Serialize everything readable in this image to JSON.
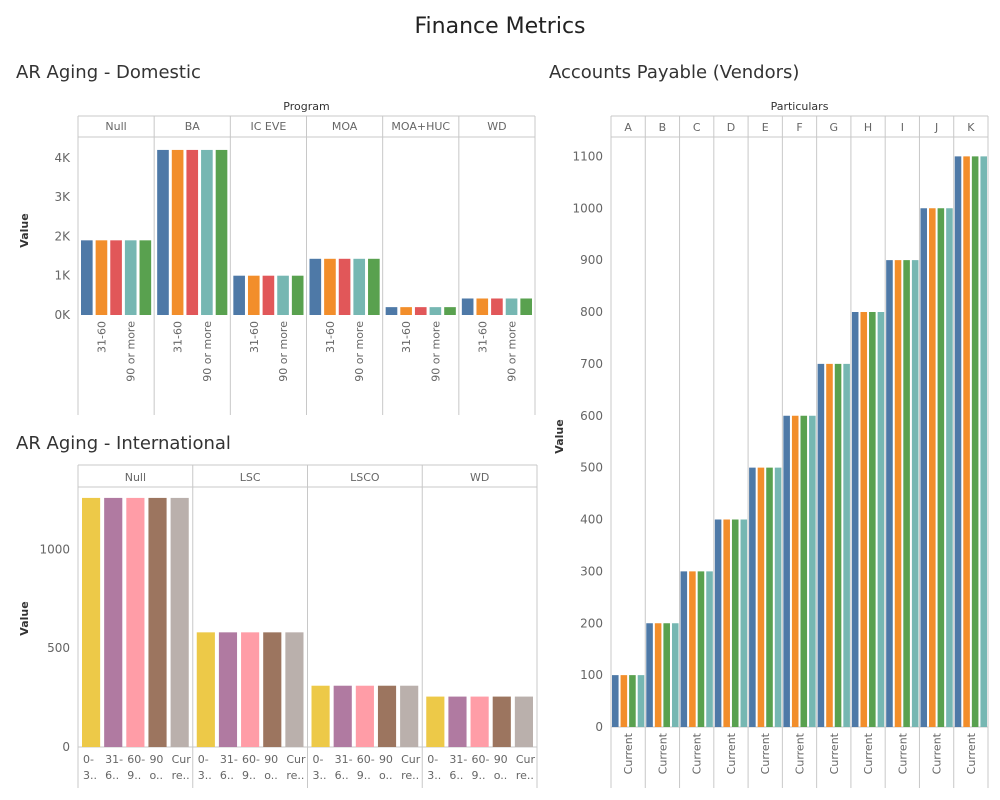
{
  "dashboard": {
    "title": "Finance Metrics"
  },
  "chart_data": [
    {
      "id": "domestic",
      "type": "bar",
      "title": "AR Aging - Domestic",
      "group_header": "Program",
      "ylabel": "Value",
      "ylim": [
        0,
        4300
      ],
      "yticks": [
        {
          "v": 0,
          "label": "0K"
        },
        {
          "v": 1000,
          "label": "1K"
        },
        {
          "v": 2000,
          "label": "2K"
        },
        {
          "v": 3000,
          "label": "3K"
        },
        {
          "v": 4000,
          "label": "4K"
        }
      ],
      "series_colors": [
        "#4e79a7",
        "#f28e2b",
        "#e15759",
        "#76b7b2",
        "#59a14f"
      ],
      "groups": [
        {
          "name": "Null",
          "values": [
            1900,
            1900,
            1900,
            1900,
            1900
          ]
        },
        {
          "name": "BA",
          "values": [
            4200,
            4200,
            4200,
            4200,
            4200
          ]
        },
        {
          "name": "IC EVE",
          "values": [
            1000,
            1000,
            1000,
            1000,
            1000
          ]
        },
        {
          "name": "MOA",
          "values": [
            1430,
            1430,
            1430,
            1430,
            1430
          ]
        },
        {
          "name": "MOA+HUC",
          "values": [
            200,
            200,
            200,
            200,
            200
          ]
        },
        {
          "name": "WD",
          "values": [
            420,
            420,
            420,
            420,
            420
          ]
        }
      ],
      "x_labels": [
        "",
        "31-60",
        "",
        "90 or more",
        ""
      ]
    },
    {
      "id": "international",
      "type": "bar",
      "title": "AR Aging - International",
      "ylabel": "Value",
      "ylim": [
        0,
        1300
      ],
      "yticks": [
        {
          "v": 0,
          "label": "0"
        },
        {
          "v": 500,
          "label": "500"
        },
        {
          "v": 1000,
          "label": "1000"
        }
      ],
      "series_colors": [
        "#edc948",
        "#b07aa1",
        "#ff9da7",
        "#9c755f",
        "#bab0ac"
      ],
      "groups": [
        {
          "name": "Null",
          "values": [
            1260,
            1260,
            1260,
            1260,
            1260
          ]
        },
        {
          "name": "LSC",
          "values": [
            580,
            580,
            580,
            580,
            580
          ]
        },
        {
          "name": "LSCO",
          "values": [
            310,
            310,
            310,
            310,
            310
          ]
        },
        {
          "name": "WD",
          "values": [
            255,
            255,
            255,
            255,
            255
          ]
        }
      ],
      "x_labels": [
        [
          "0-",
          "3.."
        ],
        [
          "31-",
          "6.."
        ],
        [
          "60-",
          "9.."
        ],
        [
          "90",
          "o.."
        ],
        [
          "Cur",
          "re.."
        ]
      ]
    },
    {
      "id": "vendors",
      "type": "bar",
      "title": "Accounts Payable (Vendors)",
      "group_header": "Particulars",
      "ylabel": "Value",
      "ylim": [
        0,
        1120
      ],
      "yticks": [
        0,
        100,
        200,
        300,
        400,
        500,
        600,
        700,
        800,
        900,
        1000,
        1100
      ],
      "series_colors": [
        "#4e79a7",
        "#f28e2b",
        "#59a14f",
        "#76b7b2"
      ],
      "groups": [
        {
          "name": "A",
          "values": [
            100,
            100,
            100,
            100
          ]
        },
        {
          "name": "B",
          "values": [
            200,
            200,
            200,
            200
          ]
        },
        {
          "name": "C",
          "values": [
            300,
            300,
            300,
            300
          ]
        },
        {
          "name": "D",
          "values": [
            400,
            400,
            400,
            400
          ]
        },
        {
          "name": "E",
          "values": [
            500,
            500,
            500,
            500
          ]
        },
        {
          "name": "F",
          "values": [
            600,
            600,
            600,
            600
          ]
        },
        {
          "name": "G",
          "values": [
            700,
            700,
            700,
            700
          ]
        },
        {
          "name": "H",
          "values": [
            800,
            800,
            800,
            800
          ]
        },
        {
          "name": "I",
          "values": [
            900,
            900,
            900,
            900
          ]
        },
        {
          "name": "J",
          "values": [
            1000,
            1000,
            1000,
            1000
          ]
        },
        {
          "name": "K",
          "values": [
            1100,
            1100,
            1100,
            1100
          ]
        }
      ],
      "x_label": "Current"
    }
  ]
}
